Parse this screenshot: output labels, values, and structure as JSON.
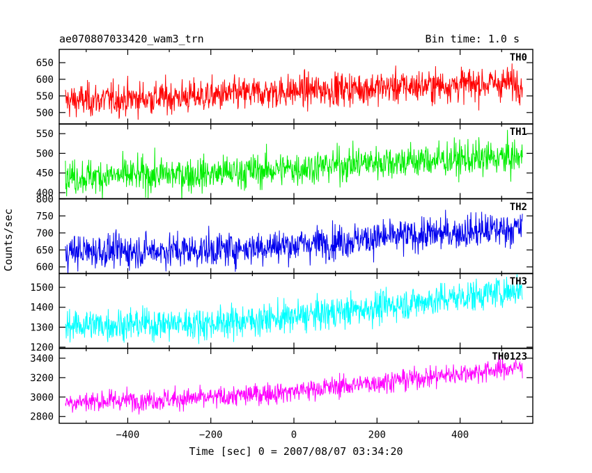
{
  "header": {
    "title": "ae070807033420_wam3_trn",
    "bin_time": "Bin time: 1.0 s"
  },
  "chart_data": {
    "type": "line",
    "title": "ae070807033420_wam3_trn",
    "subtitle": "Bin time: 1.0 s",
    "xlabel": "Time [sec] 0 = 2007/08/07 03:34:20",
    "ylabel": "Counts/sec",
    "xlim": [
      -565,
      575
    ],
    "x_ticks": [
      -400,
      -200,
      0,
      200,
      400
    ],
    "x_range_data": [
      -550,
      550
    ],
    "grid": false,
    "legend": "none",
    "panels": [
      {
        "name": "TH0",
        "color": "#ff0000",
        "ylim": [
          465,
          690
        ],
        "y_ticks": [
          500,
          550,
          600,
          650
        ],
        "trend": {
          "x": [
            -550,
            -200,
            0,
            200,
            550
          ],
          "y": [
            535,
            550,
            565,
            575,
            590
          ]
        },
        "noise_sd": 25
      },
      {
        "name": "TH1",
        "color": "#00ee00",
        "ylim": [
          385,
          575
        ],
        "y_ticks": [
          400,
          450,
          500,
          550
        ],
        "trend": {
          "x": [
            -550,
            -200,
            0,
            200,
            550
          ],
          "y": [
            440,
            448,
            462,
            478,
            490
          ]
        },
        "noise_sd": 22
      },
      {
        "name": "TH2",
        "color": "#0000ee",
        "ylim": [
          580,
          800
        ],
        "y_ticks": [
          600,
          650,
          700,
          750,
          800
        ],
        "trend": {
          "x": [
            -550,
            -200,
            0,
            200,
            550
          ],
          "y": [
            645,
            650,
            665,
            685,
            715
          ]
        },
        "noise_sd": 25
      },
      {
        "name": "TH3",
        "color": "#00ffff",
        "ylim": [
          1195,
          1570
        ],
        "y_ticks": [
          1200,
          1300,
          1400,
          1500
        ],
        "trend": {
          "x": [
            -550,
            -200,
            0,
            200,
            550
          ],
          "y": [
            1310,
            1320,
            1350,
            1400,
            1490
          ]
        },
        "noise_sd": 40
      },
      {
        "name": "TH0123",
        "color": "#ff00ff",
        "ylim": [
          2730,
          3500
        ],
        "y_ticks": [
          2800,
          3000,
          3200,
          3400
        ],
        "trend": {
          "x": [
            -550,
            -200,
            0,
            200,
            550
          ],
          "y": [
            2950,
            2990,
            3060,
            3150,
            3310
          ]
        },
        "noise_sd": 55
      }
    ]
  }
}
